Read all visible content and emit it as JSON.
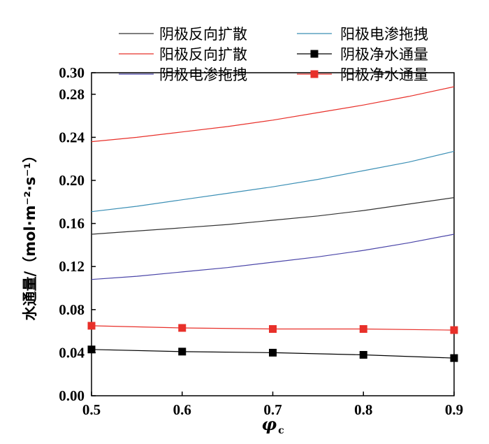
{
  "chart_data": {
    "type": "line",
    "xlabel": "φ",
    "xlabel_subscript": "c",
    "ylabel": "水通量/（mol·m⁻²·s⁻¹）",
    "xlim": [
      0.5,
      0.9
    ],
    "ylim": [
      0.0,
      0.3
    ],
    "x_ticks": [
      "0.5",
      "0.6",
      "0.7",
      "0.8",
      "0.9"
    ],
    "y_ticks": [
      "0.00",
      "0.04",
      "0.08",
      "0.12",
      "0.16",
      "0.20",
      "0.24",
      "0.28",
      "0.30"
    ],
    "grid": false,
    "legend_position": "top",
    "series": [
      {
        "name": "阴极反向扩散",
        "color": "#333333",
        "marker": "none",
        "x": [
          0.5,
          0.55,
          0.6,
          0.65,
          0.7,
          0.75,
          0.8,
          0.85,
          0.9
        ],
        "y": [
          0.15,
          0.153,
          0.156,
          0.159,
          0.163,
          0.167,
          0.172,
          0.178,
          0.184
        ]
      },
      {
        "name": "阳极反向扩散",
        "color": "#e8302a",
        "marker": "none",
        "x": [
          0.5,
          0.55,
          0.6,
          0.65,
          0.7,
          0.75,
          0.8,
          0.85,
          0.9
        ],
        "y": [
          0.236,
          0.24,
          0.245,
          0.25,
          0.256,
          0.263,
          0.27,
          0.278,
          0.287
        ]
      },
      {
        "name": "阴极电渗拖拽",
        "color": "#4a45a8",
        "marker": "none",
        "x": [
          0.5,
          0.55,
          0.6,
          0.65,
          0.7,
          0.75,
          0.8,
          0.85,
          0.9
        ],
        "y": [
          0.108,
          0.111,
          0.115,
          0.119,
          0.124,
          0.129,
          0.135,
          0.142,
          0.15
        ]
      },
      {
        "name": "阳极电渗拖拽",
        "color": "#3b8fb5",
        "marker": "none",
        "x": [
          0.5,
          0.55,
          0.6,
          0.65,
          0.7,
          0.75,
          0.8,
          0.85,
          0.9
        ],
        "y": [
          0.171,
          0.176,
          0.182,
          0.188,
          0.194,
          0.201,
          0.209,
          0.217,
          0.227
        ]
      },
      {
        "name": "阴极净水通量",
        "color": "#000000",
        "marker": "square",
        "x": [
          0.5,
          0.6,
          0.7,
          0.8,
          0.9
        ],
        "y": [
          0.043,
          0.041,
          0.04,
          0.038,
          0.035
        ]
      },
      {
        "name": "阳极净水通量",
        "color": "#e8302a",
        "marker": "square",
        "x": [
          0.5,
          0.6,
          0.7,
          0.8,
          0.9
        ],
        "y": [
          0.065,
          0.063,
          0.062,
          0.062,
          0.061
        ]
      }
    ]
  }
}
